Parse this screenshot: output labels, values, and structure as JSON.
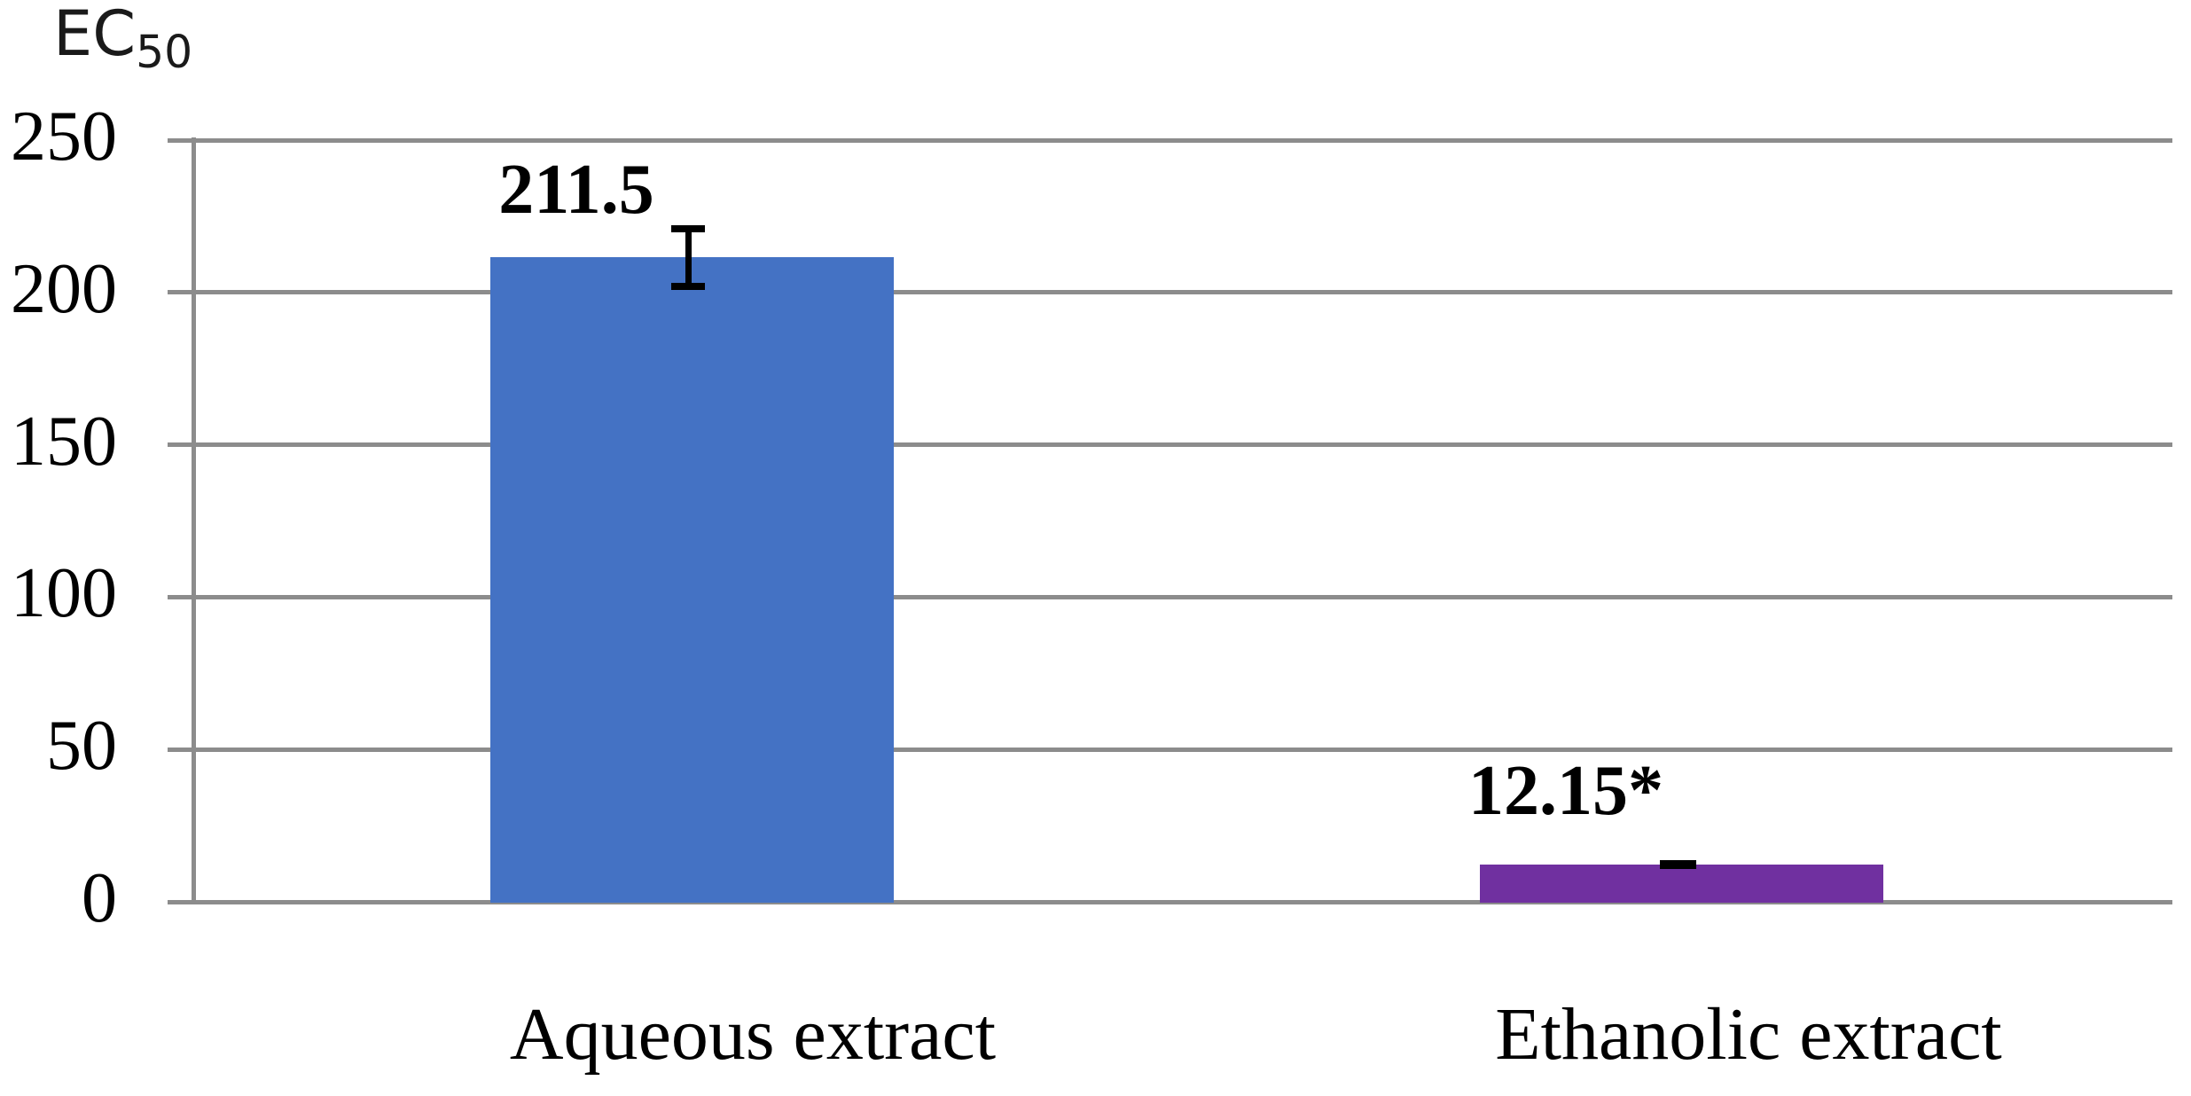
{
  "chart_data": {
    "type": "bar",
    "title": "",
    "ylabel_main": "EC",
    "ylabel_sub": "50",
    "xlabel": "",
    "categories": [
      "Aqueous extract",
      "Ethanolic extract"
    ],
    "values": [
      211.5,
      12.15
    ],
    "value_labels": [
      "211.5",
      "12.15*"
    ],
    "errors": [
      10.6,
      1.5
    ],
    "bar_colors": [
      "#4472C4",
      "#7030A0"
    ],
    "yticks": [
      0,
      50,
      100,
      150,
      200,
      250
    ],
    "ylim": [
      0,
      250
    ],
    "grid": true,
    "gridline_color": "#8C8C8C",
    "legend": "none",
    "annotations": {
      "significance_marker": "*"
    }
  }
}
